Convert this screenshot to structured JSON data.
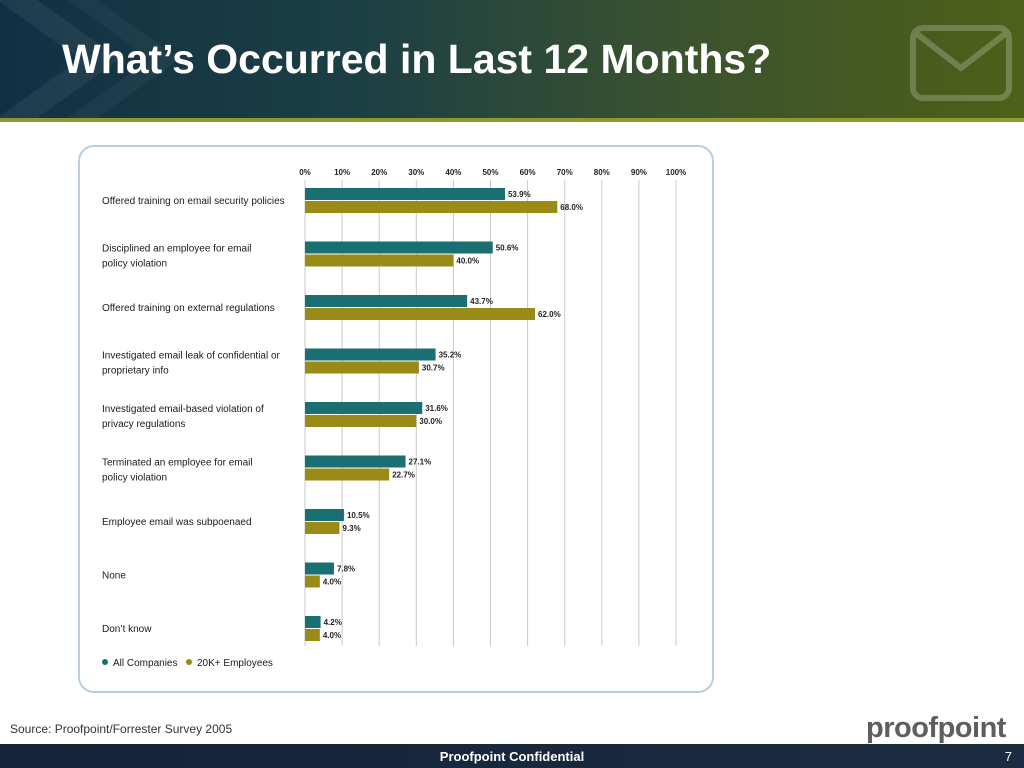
{
  "slide": {
    "title": "What’s Occurred in Last 12 Months?",
    "source": "Source: Proofpoint/Forrester Survey 2005",
    "footer": "Proofpoint Confidential",
    "page_number": "7",
    "logo_text": "proofpoint",
    "colors": {
      "header_dark": "#123044",
      "header_olive": "#4e6018",
      "footer": "#15233a"
    }
  },
  "chart_data": {
    "type": "bar",
    "orientation": "horizontal",
    "categories": [
      [
        "Offered training on email security policies"
      ],
      [
        "Disciplined an employee for email",
        "policy violation"
      ],
      [
        "Offered training on external regulations"
      ],
      [
        "Investigated email leak of confidential or",
        "proprietary info"
      ],
      [
        "Investigated email-based violation of",
        "privacy regulations"
      ],
      [
        "Terminated an employee for email",
        "policy violation"
      ],
      [
        "Employee email was subpoenaed"
      ],
      [
        "None"
      ],
      [
        "Don’t know"
      ]
    ],
    "series": [
      {
        "name": "All Companies",
        "color": "#1a6f72",
        "values": [
          53.9,
          50.6,
          43.7,
          35.2,
          31.6,
          27.1,
          10.5,
          7.8,
          4.2
        ],
        "labels": [
          "53.9%",
          "50.6%",
          "43.7%",
          "35.2%",
          "31.6%",
          "27.1%",
          "10.5%",
          "7.8%",
          "4.2%"
        ]
      },
      {
        "name": "20K+ Employees",
        "color": "#9a8a16",
        "values": [
          68.0,
          40.0,
          62.0,
          30.7,
          30.0,
          22.7,
          9.3,
          4.0,
          4.0
        ],
        "labels": [
          "68.0%",
          "40.0%",
          "62.0%",
          "30.7%",
          "30.0%",
          "22.7%",
          "9.3%",
          "4.0%",
          "4.0%"
        ]
      }
    ],
    "x_ticks": [
      "0%",
      "10%",
      "20%",
      "30%",
      "40%",
      "50%",
      "60%",
      "70%",
      "80%",
      "90%",
      "100%"
    ],
    "xlim": [
      0,
      100
    ],
    "grid": true,
    "legend": "bottom-left"
  }
}
